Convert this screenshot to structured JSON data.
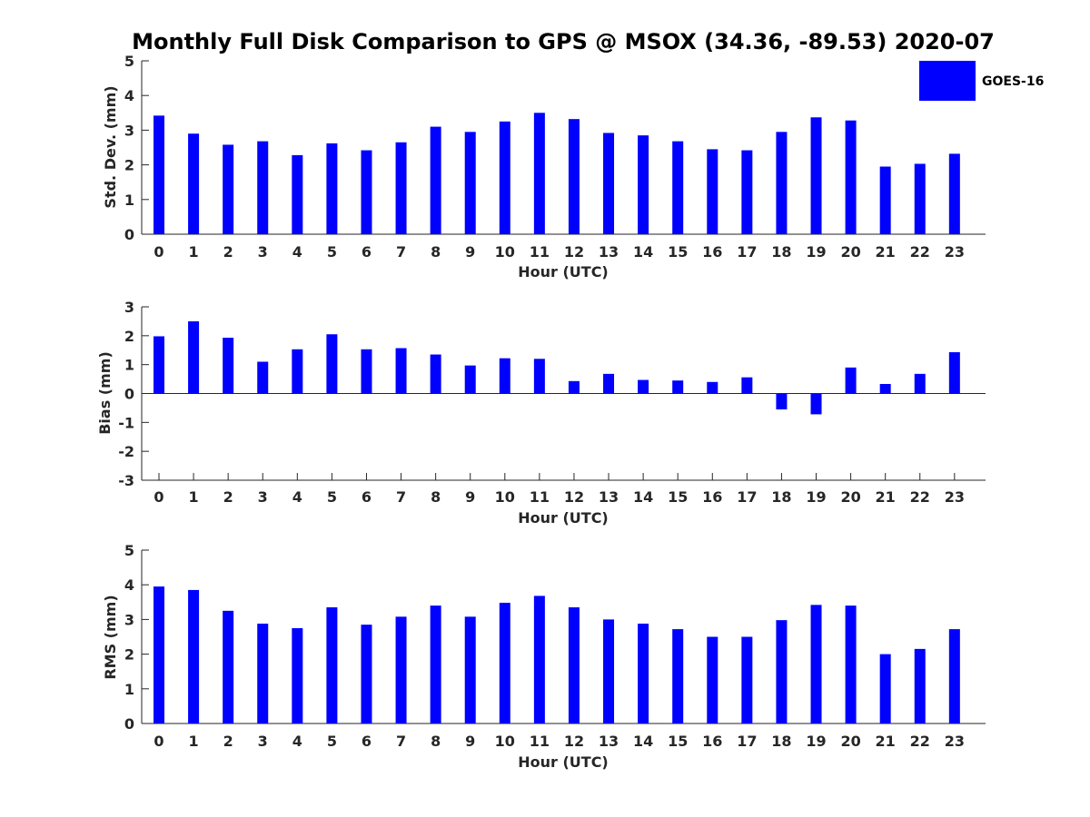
{
  "title": "Monthly Full Disk Comparison to GPS @ MSOX (34.36, -89.53) 2020-07",
  "colors": {
    "bar": "#0000ff",
    "axis": "#262626",
    "background": "#ffffff"
  },
  "legend": {
    "label": "GOES-16",
    "placement": "top-right"
  },
  "chart_data": [
    {
      "type": "bar",
      "xlabel": "Hour (UTC)",
      "ylabel": "Std. Dev. (mm)",
      "ylim": [
        0,
        5
      ],
      "yticks": [
        0,
        1,
        2,
        3,
        4,
        5
      ],
      "categories": [
        "0",
        "1",
        "2",
        "3",
        "4",
        "5",
        "6",
        "7",
        "8",
        "9",
        "10",
        "11",
        "12",
        "13",
        "14",
        "15",
        "16",
        "17",
        "18",
        "19",
        "20",
        "21",
        "22",
        "23"
      ],
      "series": [
        {
          "name": "GOES-16",
          "values": [
            3.42,
            2.9,
            2.58,
            2.68,
            2.28,
            2.62,
            2.42,
            2.65,
            3.1,
            2.95,
            3.25,
            3.5,
            3.32,
            2.92,
            2.85,
            2.68,
            2.45,
            2.42,
            2.95,
            3.37,
            3.28,
            1.95,
            2.03,
            2.32
          ]
        }
      ],
      "grid": false
    },
    {
      "type": "bar",
      "xlabel": "Hour (UTC)",
      "ylabel": "Bias (mm)",
      "ylim": [
        -3,
        3
      ],
      "yticks": [
        -3,
        -2,
        -1,
        0,
        1,
        2,
        3
      ],
      "categories": [
        "0",
        "1",
        "2",
        "3",
        "4",
        "5",
        "6",
        "7",
        "8",
        "9",
        "10",
        "11",
        "12",
        "13",
        "14",
        "15",
        "16",
        "17",
        "18",
        "19",
        "20",
        "21",
        "22",
        "23"
      ],
      "series": [
        {
          "name": "GOES-16",
          "values": [
            1.98,
            2.5,
            1.93,
            1.1,
            1.53,
            2.05,
            1.53,
            1.57,
            1.35,
            0.97,
            1.22,
            1.2,
            0.43,
            0.68,
            0.47,
            0.45,
            0.4,
            0.56,
            -0.55,
            -0.72,
            0.9,
            0.33,
            0.68,
            1.43
          ]
        }
      ],
      "grid": false
    },
    {
      "type": "bar",
      "xlabel": "Hour (UTC)",
      "ylabel": "RMS (mm)",
      "ylim": [
        0,
        5
      ],
      "yticks": [
        0,
        1,
        2,
        3,
        4,
        5
      ],
      "categories": [
        "0",
        "1",
        "2",
        "3",
        "4",
        "5",
        "6",
        "7",
        "8",
        "9",
        "10",
        "11",
        "12",
        "13",
        "14",
        "15",
        "16",
        "17",
        "18",
        "19",
        "20",
        "21",
        "22",
        "23"
      ],
      "series": [
        {
          "name": "GOES-16",
          "values": [
            3.95,
            3.85,
            3.25,
            2.88,
            2.75,
            3.35,
            2.85,
            3.08,
            3.4,
            3.08,
            3.48,
            3.68,
            3.35,
            3.0,
            2.88,
            2.72,
            2.5,
            2.5,
            2.98,
            3.42,
            3.4,
            2.0,
            2.15,
            2.72
          ]
        }
      ],
      "grid": false
    }
  ]
}
